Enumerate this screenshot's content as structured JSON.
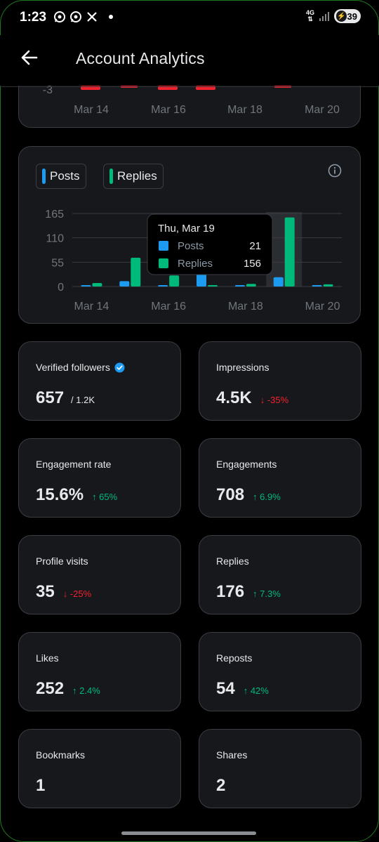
{
  "status_bar": {
    "time": "1:23",
    "network": "4G",
    "battery": "39"
  },
  "header": {
    "title": "Account Analytics"
  },
  "top_chart": {
    "ytick": "-3",
    "xticks": [
      "Mar 14",
      "Mar 16",
      "Mar 18",
      "Mar 20"
    ]
  },
  "legend": {
    "posts": "Posts",
    "replies": "Replies"
  },
  "colors": {
    "posts": "#1d9bf0",
    "replies": "#00ba7c",
    "down_bar": "#f4212e",
    "up": "#00ba7c",
    "down": "#f4212e"
  },
  "tooltip": {
    "date": "Thu, Mar 19",
    "posts_label": "Posts",
    "posts_value": "21",
    "replies_label": "Replies",
    "replies_value": "156"
  },
  "chart_data": {
    "type": "bar",
    "title": "",
    "categories": [
      "Mar 14",
      "Mar 15",
      "Mar 16",
      "Mar 17",
      "Mar 18",
      "Mar 19",
      "Mar 20"
    ],
    "xticks": [
      "Mar 14",
      "Mar 16",
      "Mar 18",
      "Mar 20"
    ],
    "yticks": [
      "165",
      "110",
      "55",
      "0"
    ],
    "ylim": [
      0,
      165
    ],
    "series": [
      {
        "name": "Posts",
        "values": [
          2,
          12,
          3,
          40,
          1,
          21,
          3
        ]
      },
      {
        "name": "Replies",
        "values": [
          8,
          65,
          25,
          1,
          6,
          156,
          5
        ]
      }
    ],
    "highlighted": "Mar 19",
    "grid": true
  },
  "stats": [
    {
      "label": "Verified followers",
      "value": "657",
      "sub": "/ 1.2K",
      "verified": true
    },
    {
      "label": "Impressions",
      "value": "4.5K",
      "change": "↓ -35%",
      "dir": "down"
    },
    {
      "label": "Engagement rate",
      "value": "15.6%",
      "change": "↑ 65%",
      "dir": "up"
    },
    {
      "label": "Engagements",
      "value": "708",
      "change": "↑ 6.9%",
      "dir": "up"
    },
    {
      "label": "Profile visits",
      "value": "35",
      "change": "↓ -25%",
      "dir": "down"
    },
    {
      "label": "Replies",
      "value": "176",
      "change": "↑ 7.3%",
      "dir": "up"
    },
    {
      "label": "Likes",
      "value": "252",
      "change": "↑ 2.4%",
      "dir": "up"
    },
    {
      "label": "Reposts",
      "value": "54",
      "change": "↑ 42%",
      "dir": "up"
    },
    {
      "label": "Bookmarks",
      "value": "1"
    },
    {
      "label": "Shares",
      "value": "2"
    }
  ]
}
